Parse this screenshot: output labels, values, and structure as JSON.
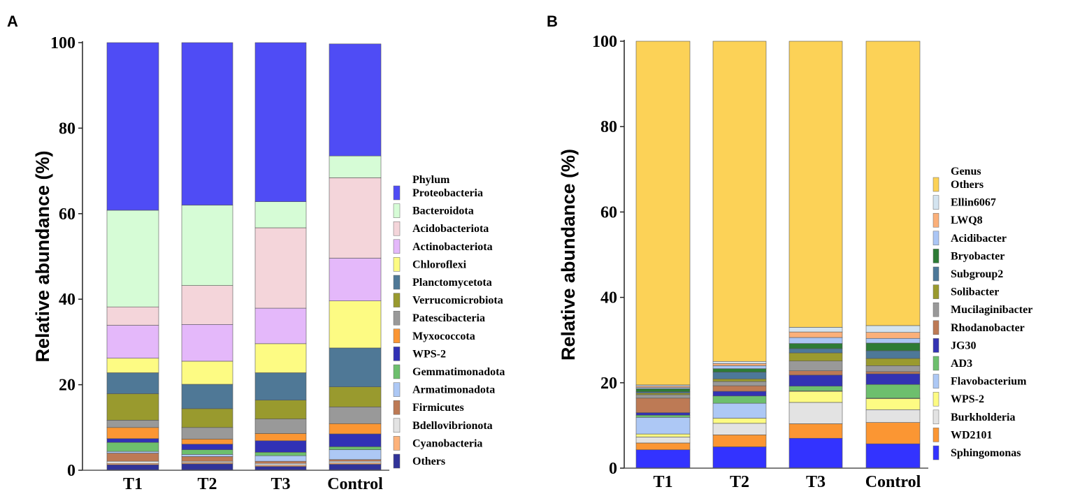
{
  "chart_data": [
    {
      "type": "bar",
      "stacked": true,
      "panel_label": "A",
      "ylabel": "Relative abundance (%)",
      "ylim": [
        0,
        100
      ],
      "yticks": [
        "0",
        "20",
        "40",
        "60",
        "80",
        "100"
      ],
      "categories": [
        "T1",
        "T2",
        "T3",
        "Control"
      ],
      "legend_title": "Phylum",
      "series": [
        {
          "name": "Others",
          "color": "#303399",
          "values": [
            1.3,
            1.5,
            0.9,
            1.4
          ]
        },
        {
          "name": "Cyanobacteria",
          "color": "#fdb27a",
          "values": [
            0.3,
            0.3,
            0.3,
            0.3
          ]
        },
        {
          "name": "Bdellovibrionota",
          "color": "#e3e3e3",
          "values": [
            0.5,
            0.3,
            0.4,
            0.4
          ]
        },
        {
          "name": "Firmicutes",
          "color": "#bd7a55",
          "values": [
            1.9,
            1.1,
            0.5,
            0.4
          ]
        },
        {
          "name": "Armatimonadota",
          "color": "#adc8f5",
          "values": [
            0.4,
            0.5,
            1.3,
            2.3
          ]
        },
        {
          "name": "Gemmatimonadota",
          "color": "#6dbf6d",
          "values": [
            2.1,
            1.1,
            0.8,
            0.7
          ]
        },
        {
          "name": "WPS-2",
          "color": "#3131b5",
          "values": [
            0.9,
            1.3,
            2.7,
            3.0
          ]
        },
        {
          "name": "Myxococcota",
          "color": "#fb9633",
          "values": [
            2.6,
            1.2,
            1.7,
            2.4
          ]
        },
        {
          "name": "Patescibacteria",
          "color": "#999999",
          "values": [
            1.7,
            2.7,
            3.4,
            3.9
          ]
        },
        {
          "name": "Verrucomicrobiota",
          "color": "#999a2e",
          "values": [
            6.2,
            4.4,
            4.4,
            4.7
          ]
        },
        {
          "name": "Planctomycetota",
          "color": "#4f7896",
          "values": [
            4.9,
            5.7,
            6.4,
            9.1
          ]
        },
        {
          "name": "Chloroflexi",
          "color": "#fdfb83",
          "values": [
            3.4,
            5.4,
            6.8,
            11.0
          ]
        },
        {
          "name": "Actinobacteriota",
          "color": "#e4b8fa",
          "values": [
            7.7,
            8.6,
            8.3,
            10.0
          ]
        },
        {
          "name": "Acidobacteriota",
          "color": "#f4d5da",
          "values": [
            4.3,
            9.1,
            18.8,
            18.8
          ]
        },
        {
          "name": "Bacteroidota",
          "color": "#d6fcd6",
          "values": [
            22.6,
            18.8,
            6.1,
            5.1
          ]
        },
        {
          "name": "Proteobacteria",
          "color": "#4f4cf5",
          "values": [
            39.2,
            38.0,
            37.2,
            26.2
          ]
        }
      ]
    },
    {
      "type": "bar",
      "stacked": true,
      "panel_label": "B",
      "ylabel": "Relative abundance (%)",
      "ylim": [
        0,
        100
      ],
      "yticks": [
        "0",
        "20",
        "40",
        "60",
        "80",
        "100"
      ],
      "categories": [
        "T1",
        "T2",
        "T3",
        "Control"
      ],
      "legend_title": "Genus",
      "series": [
        {
          "name": "Sphingomonas",
          "color": "#3333ff",
          "values": [
            4.3,
            5.0,
            7.0,
            5.7
          ]
        },
        {
          "name": "WD2101",
          "color": "#fb9633",
          "values": [
            1.6,
            2.8,
            3.4,
            5.0
          ]
        },
        {
          "name": "Burkholderia",
          "color": "#e3e3e3",
          "values": [
            1.4,
            2.7,
            5.0,
            3.0
          ]
        },
        {
          "name": "WPS-2",
          "color": "#fdfb83",
          "values": [
            0.7,
            1.2,
            2.6,
            2.6
          ]
        },
        {
          "name": "Flavobacterium",
          "color": "#adc8f5",
          "values": [
            3.9,
            3.5,
            0.1,
            0.1
          ]
        },
        {
          "name": "AD3",
          "color": "#6dbf6d",
          "values": [
            0.5,
            1.7,
            1.1,
            3.2
          ]
        },
        {
          "name": "JG30",
          "color": "#3333b3",
          "values": [
            0.6,
            1.1,
            2.6,
            2.5
          ]
        },
        {
          "name": "Rhodanobacter",
          "color": "#bd7a55",
          "values": [
            3.4,
            1.3,
            1.0,
            0.5
          ]
        },
        {
          "name": "Mucilaginibacter",
          "color": "#999999",
          "values": [
            0.8,
            1.0,
            2.3,
            1.4
          ]
        },
        {
          "name": "Solibacter",
          "color": "#9a9a2e",
          "values": [
            0.4,
            0.6,
            1.9,
            1.7
          ]
        },
        {
          "name": "Subgroup2",
          "color": "#4d7898",
          "values": [
            0.3,
            1.6,
            1.0,
            1.8
          ]
        },
        {
          "name": "Bryobacter",
          "color": "#2d7b35",
          "values": [
            0.7,
            0.8,
            1.2,
            1.8
          ]
        },
        {
          "name": "Acidibacter",
          "color": "#abc6f5",
          "values": [
            0.3,
            0.7,
            1.4,
            1.1
          ]
        },
        {
          "name": "LWQ8",
          "color": "#fbb07a",
          "values": [
            0.3,
            0.5,
            1.3,
            1.4
          ]
        },
        {
          "name": "Ellin6067",
          "color": "#d4e4f0",
          "values": [
            0.3,
            0.5,
            1.1,
            1.6
          ]
        },
        {
          "name": "Others",
          "color": "#fcd257",
          "values": [
            80.5,
            75.0,
            67.0,
            66.6
          ]
        }
      ]
    }
  ]
}
